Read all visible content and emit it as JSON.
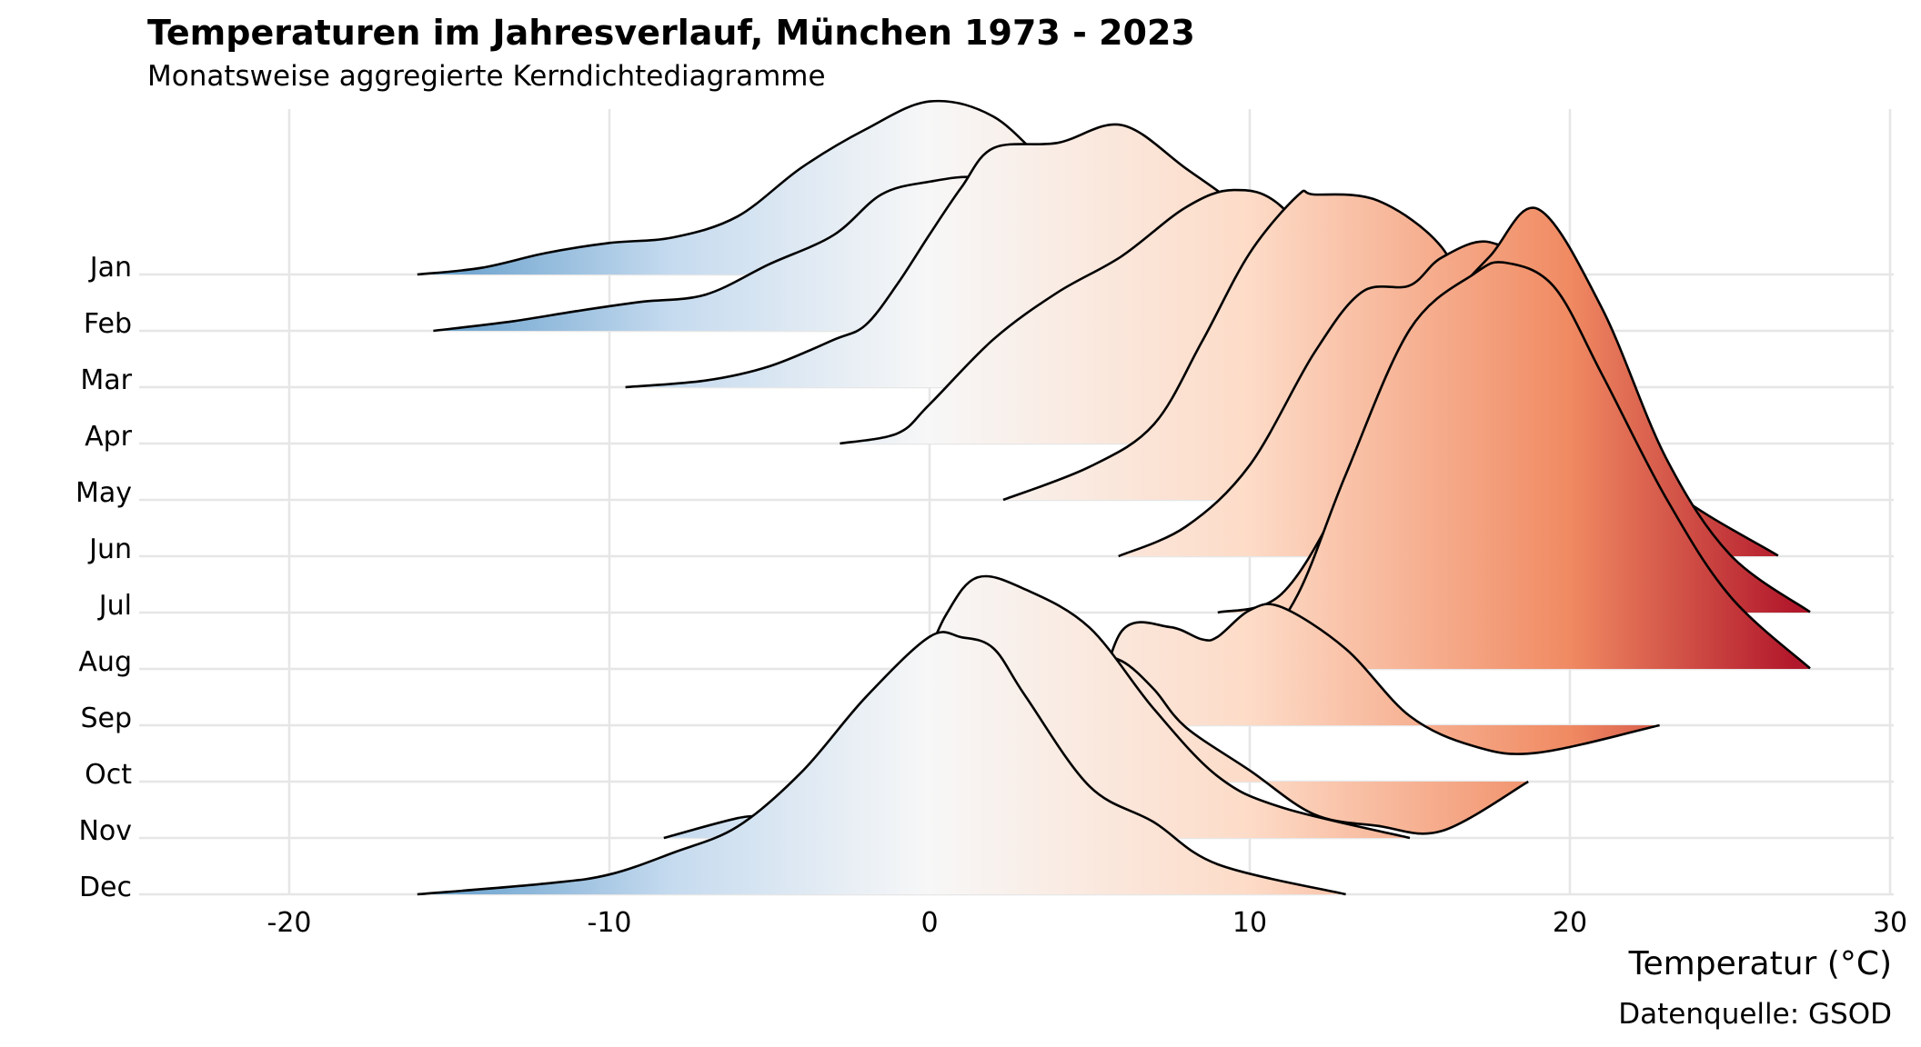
{
  "chart_data": {
    "type": "ridgeline",
    "title": "Temperaturen im Jahresverlauf, München 1973 - 2023",
    "subtitle": "Monatsweise aggregierte Kerndichtediagramme",
    "xlabel": "Temperatur (°C)",
    "caption": "Datenquelle: GSOD",
    "xlim": [
      -25,
      30
    ],
    "xticks": [
      -20,
      -10,
      0,
      10,
      20,
      30
    ],
    "grid": true,
    "fill_gradient": {
      "type": "diverging",
      "stops": [
        {
          "value": -20,
          "color": "#2c7bb6"
        },
        {
          "value": -8,
          "color": "#c6dbef"
        },
        {
          "value": 0,
          "color": "#f7f7f7"
        },
        {
          "value": 10,
          "color": "#fddbc7"
        },
        {
          "value": 20,
          "color": "#f08a62"
        },
        {
          "value": 27,
          "color": "#b2182b"
        }
      ]
    },
    "line_color": "#000000",
    "series": [
      {
        "name": "Jan",
        "x": [
          -16,
          -14,
          -12,
          -10,
          -8,
          -6,
          -4,
          -2,
          0,
          2,
          4,
          6,
          8,
          10,
          12.7
        ],
        "density": [
          0.0,
          0.013,
          0.042,
          0.062,
          0.073,
          0.114,
          0.21,
          0.285,
          0.34,
          0.31,
          0.2,
          0.135,
          0.061,
          0.019,
          0.002
        ]
      },
      {
        "name": "Feb",
        "x": [
          -15.5,
          -13,
          -11,
          -9,
          -7,
          -5,
          -3,
          -1.5,
          0,
          1.5,
          3,
          4,
          5,
          6,
          8,
          9
        ],
        "density": [
          0.0,
          0.019,
          0.039,
          0.057,
          0.071,
          0.131,
          0.188,
          0.268,
          0.293,
          0.301,
          0.268,
          0.226,
          0.191,
          0.122,
          0.052,
          0.011
        ]
      },
      {
        "name": "Mar",
        "x": [
          -9.5,
          -7,
          -5,
          -3,
          -2,
          -1,
          0,
          1,
          2,
          4,
          6,
          8,
          10,
          12,
          12.5
        ],
        "density": [
          0.0,
          0.013,
          0.041,
          0.093,
          0.122,
          0.203,
          0.3,
          0.393,
          0.47,
          0.48,
          0.515,
          0.43,
          0.335,
          0.199,
          0.167
        ]
      },
      {
        "name": "Apr",
        "x": [
          -2.8,
          -1,
          0,
          2,
          4,
          6,
          8,
          9.5,
          11,
          13,
          15,
          17,
          18
        ],
        "density": [
          0.0,
          0.02,
          0.077,
          0.205,
          0.297,
          0.368,
          0.464,
          0.498,
          0.465,
          0.3,
          0.116,
          0.013,
          0.001
        ]
      },
      {
        "name": "May",
        "x": [
          2.3,
          5,
          7,
          8.5,
          10,
          11.5,
          12,
          14,
          16,
          17,
          19,
          21,
          23.6
        ],
        "density": [
          0.0,
          0.065,
          0.148,
          0.31,
          0.485,
          0.598,
          0.6,
          0.588,
          0.496,
          0.354,
          0.15,
          0.039,
          0.0
        ]
      },
      {
        "name": "Jun",
        "x": [
          5.9,
          8,
          10,
          12,
          13.5,
          15,
          16,
          17.5,
          19,
          21,
          23,
          26.5
        ],
        "density": [
          0.0,
          0.058,
          0.179,
          0.398,
          0.519,
          0.532,
          0.587,
          0.617,
          0.543,
          0.31,
          0.139,
          0.001
        ]
      },
      {
        "name": "Jul",
        "x": [
          9,
          11,
          13,
          15,
          16,
          17.5,
          19,
          21,
          23,
          25,
          27.5
        ],
        "density": [
          0.0,
          0.037,
          0.239,
          0.503,
          0.597,
          0.7,
          0.793,
          0.598,
          0.304,
          0.114,
          0.001
        ]
      },
      {
        "name": "Aug",
        "x": [
          9.9,
          11.5,
          13,
          15,
          17,
          18,
          19.5,
          21,
          23,
          25,
          27.5
        ],
        "density": [
          0.0,
          0.146,
          0.382,
          0.667,
          0.776,
          0.798,
          0.751,
          0.579,
          0.336,
          0.143,
          0.001
        ]
      },
      {
        "name": "Sep",
        "x": [
          5.1,
          6,
          7.5,
          8.5,
          9,
          10,
          11,
          13,
          15,
          17,
          19,
          22.8
        ],
        "density": [
          0.0,
          0.185,
          0.193,
          0.169,
          0.174,
          0.226,
          0.232,
          0.15,
          0.018,
          -0.041,
          -0.054,
          0.0
        ]
      },
      {
        "name": "Oct",
        "x": [
          1.2,
          3,
          4,
          5,
          6,
          7,
          8,
          10,
          12,
          14,
          16,
          18.7
        ],
        "density": [
          0.0,
          0.197,
          0.229,
          0.247,
          0.237,
          0.182,
          0.107,
          0.022,
          -0.064,
          -0.087,
          -0.097,
          0.0
        ]
      },
      {
        "name": "Nov",
        "x": [
          -8.3,
          -6,
          -4,
          -2,
          -0.5,
          0.5,
          1.5,
          3,
          5,
          7,
          9,
          11,
          15
        ],
        "density": [
          0.0,
          0.039,
          0.062,
          0.194,
          0.304,
          0.437,
          0.512,
          0.488,
          0.413,
          0.254,
          0.121,
          0.06,
          0.0
        ]
      },
      {
        "name": "Dec",
        "x": [
          -16,
          -12,
          -10,
          -8,
          -6,
          -4,
          -2,
          0,
          1,
          2,
          3,
          5,
          7,
          9,
          13
        ],
        "density": [
          0.0,
          0.021,
          0.039,
          0.082,
          0.133,
          0.24,
          0.387,
          0.506,
          0.505,
          0.483,
          0.389,
          0.212,
          0.142,
          0.059,
          0.0
        ]
      }
    ]
  }
}
